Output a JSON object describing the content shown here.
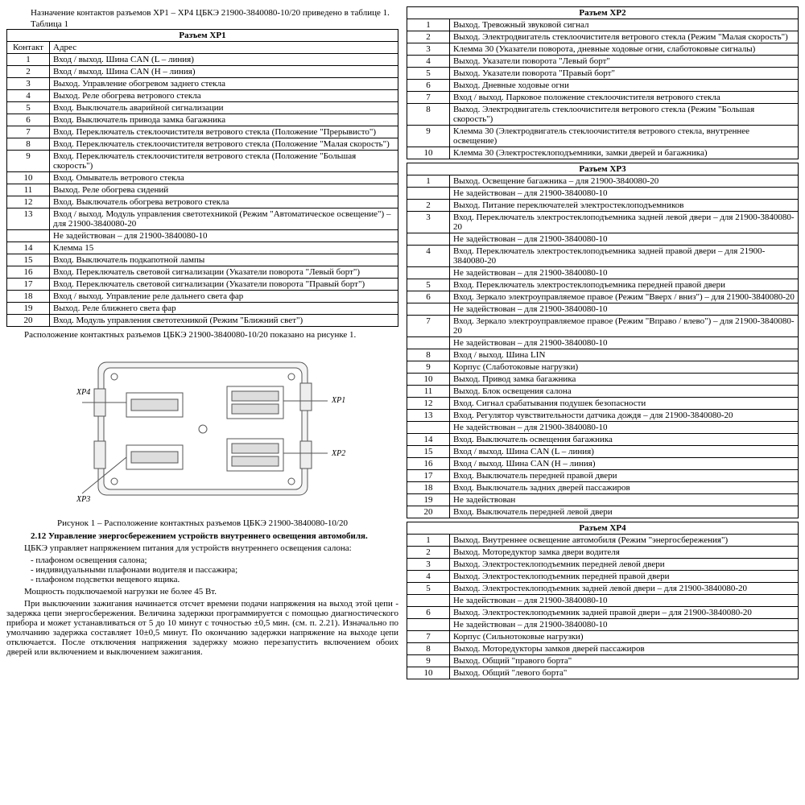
{
  "intro": "Назначение контактов разъемов XP1 – XP4 ЦБКЭ 21900-3840080-10/20 приведено в таблице 1.",
  "tlabel": "Таблица 1",
  "xp1": {
    "title": "Разъем XP1",
    "head": [
      "Контакт",
      "Адрес"
    ],
    "rows": [
      [
        "1",
        "Вход / выход. Шина CAN (L – линия)"
      ],
      [
        "2",
        "Вход / выход. Шина CAN (H – линия)"
      ],
      [
        "3",
        "Выход. Управление обогревом заднего стекла"
      ],
      [
        "4",
        "Выход. Реле обогрева ветрового стекла"
      ],
      [
        "5",
        "Вход. Выключатель аварийной сигнализации"
      ],
      [
        "6",
        "Вход. Выключатель привода замка багажника"
      ],
      [
        "7",
        "Вход. Переключатель стеклоочистителя ветрового стекла (Положение \"Прерывисто\")"
      ],
      [
        "8",
        "Вход. Переключатель стеклоочистителя ветрового стекла (Положение \"Малая скорость\")"
      ],
      [
        "9",
        "Вход. Переключатель стеклоочистителя ветрового стекла (Положение \"Большая скорость\")"
      ],
      [
        "10",
        "Вход. Омыватель ветрового стекла"
      ],
      [
        "11",
        "Выход. Реле обогрева сидений"
      ],
      [
        "12",
        "Вход. Выключатель обогрева ветрового стекла"
      ],
      [
        "13",
        "Вход / выход. Модуль управления светотехникой (Режим \"Автоматическое освещение\") – для 21900-3840080-20"
      ],
      [
        "",
        "Не задействован – для 21900-3840080-10"
      ],
      [
        "14",
        "Клемма 15"
      ],
      [
        "15",
        "Вход. Выключатель подкапотной лампы"
      ],
      [
        "16",
        "Вход. Переключатель световой сигнализации (Указатели поворота \"Левый борт\")"
      ],
      [
        "17",
        "Вход. Переключатель световой сигнализации (Указатели поворота \"Правый борт\")"
      ],
      [
        "18",
        "Вход / выход. Управление реле дальнего света фар"
      ],
      [
        "19",
        "Выход. Реле ближнего света фар"
      ],
      [
        "20",
        "Вход. Модуль управления светотехникой (Режим \"Ближний свет\")"
      ]
    ]
  },
  "para1": "Расположение контактных разъемов ЦБКЭ 21900-3840080-10/20 показано на рисунке 1.",
  "figcap": "Рисунок 1 – Расположение контактных разъемов ЦБКЭ 21900-3840080-10/20",
  "sect": "2.12 Управление энергосбережением устройств внутреннего освещения автомобиля.",
  "p2": "ЦБКЭ управляет напряжением питания для устройств внутреннего освещения салона:",
  "b1": "- плафоном освещения салона;",
  "b2": "- индивидуальными плафонами водителя и пассажира;",
  "b3": "- плафоном подсветки вещевого ящика.",
  "p3": "Мощность подключаемой нагрузки не более 45 Вт.",
  "p4": "При выключении зажигания начинается отсчет времени подачи напряжения на выход этой цепи - задержка цепи энергосбережения. Величина задержки программируется с помощью диагностического прибора и может устанавливаться от 5 до 10 минут с точностью ±0,5 мин. (см. п. 2.21). Изначально по умолчанию задержка составляет 10±0,5 минут. По окончанию задержки напряжение на выходе цепи отключается. После отключения напряжения задержку можно перезапустить включением обоих дверей или включением и выключением зажигания.",
  "xp2": {
    "title": "Разъем XP2",
    "rows": [
      [
        "1",
        "Выход. Тревожный звуковой сигнал"
      ],
      [
        "2",
        "Выход. Электродвигатель стеклоочистителя ветрового стекла (Режим \"Малая скорость\")"
      ],
      [
        "3",
        "Клемма 30 (Указатели поворота, дневные ходовые огни, слаботоковые сигналы)"
      ],
      [
        "4",
        "Выход. Указатели поворота \"Левый борт\""
      ],
      [
        "5",
        "Выход. Указатели поворота \"Правый борт\""
      ],
      [
        "6",
        "Выход. Дневные ходовые огни"
      ],
      [
        "7",
        "Вход / выход. Парковое положение стеклоочистителя ветрового стекла"
      ],
      [
        "8",
        "Выход. Электродвигатель стеклоочистителя ветрового стекла (Режим \"Большая скорость\")"
      ],
      [
        "9",
        "Клемма 30 (Электродвигатель стеклоочистителя ветрового стекла, внутреннее освещение)"
      ],
      [
        "10",
        "Клемма 30 (Электростеклоподъемники, замки дверей и багажника)"
      ]
    ]
  },
  "xp3": {
    "title": "Разъем XP3",
    "rows": [
      [
        "1",
        "Выход. Освещение багажника – для 21900-3840080-20"
      ],
      [
        "",
        "Не задействован – для 21900-3840080-10"
      ],
      [
        "2",
        "Выход. Питание переключателей электростеклоподъемников"
      ],
      [
        "3",
        "Вход. Переключатель электростеклоподъемника задней левой двери – для 21900-3840080-20"
      ],
      [
        "",
        "Не задействован – для 21900-3840080-10"
      ],
      [
        "4",
        "Вход. Переключатель электростеклоподъемника задней правой двери – для 21900-3840080-20"
      ],
      [
        "",
        "Не задействован – для 21900-3840080-10"
      ],
      [
        "5",
        "Вход. Переключатель электростеклоподъемника передней правой двери"
      ],
      [
        "6",
        "Вход. Зеркало электроуправляемое правое (Режим \"Вверх / вниз\") – для 21900-3840080-20"
      ],
      [
        "",
        "Не задействован – для 21900-3840080-10"
      ],
      [
        "7",
        "Вход. Зеркало электроуправляемое правое (Режим \"Вправо / влево\") – для 21900-3840080-20"
      ],
      [
        "",
        "Не задействован – для 21900-3840080-10"
      ],
      [
        "8",
        "Вход / выход. Шина LIN"
      ],
      [
        "9",
        "Корпус (Слаботоковые нагрузки)"
      ],
      [
        "10",
        "Выход. Привод замка багажника"
      ],
      [
        "11",
        "Выход. Блок освещения салона"
      ],
      [
        "12",
        "Вход. Сигнал срабатывания подушек безопасности"
      ],
      [
        "13",
        "Вход. Регулятор чувствительности датчика дождя – для 21900-3840080-20"
      ],
      [
        "",
        "Не задействован – для 21900-3840080-10"
      ],
      [
        "14",
        "Вход. Выключатель освещения багажника"
      ],
      [
        "15",
        "Вход / выход. Шина CAN (L – линия)"
      ],
      [
        "16",
        "Вход / выход. Шина CAN (H – линия)"
      ],
      [
        "17",
        "Вход. Выключатель передней правой двери"
      ],
      [
        "18",
        "Вход. Выключатель задних дверей пассажиров"
      ],
      [
        "19",
        "Не задействован"
      ],
      [
        "20",
        "Вход. Выключатель передней левой двери"
      ]
    ]
  },
  "xp4": {
    "title": "Разъем XP4",
    "rows": [
      [
        "1",
        "Выход. Внутреннее освещение автомобиля (Режим \"энергосбережения\")"
      ],
      [
        "2",
        "Выход. Моторедуктор замка двери водителя"
      ],
      [
        "3",
        "Выход. Электростеклоподъемник передней левой двери"
      ],
      [
        "4",
        "Выход. Электростеклоподъемник передней правой двери"
      ],
      [
        "5",
        "Выход. Электростеклоподъемник задней левой двери – для 21900-3840080-20"
      ],
      [
        "",
        "Не задействован – для 21900-3840080-10"
      ],
      [
        "6",
        "Выход. Электростеклоподъемник задней правой двери – для 21900-3840080-20"
      ],
      [
        "",
        "Не задействован – для 21900-3840080-10"
      ],
      [
        "7",
        "Корпус (Сильнотоковые нагрузки)"
      ],
      [
        "8",
        "Выход. Моторедукторы замков дверей пассажиров"
      ],
      [
        "9",
        "Выход. Общий \"правого борта\""
      ],
      [
        "10",
        "Выход. Общий \"левого борта\""
      ]
    ]
  },
  "fig": {
    "labels": [
      "XP4",
      "XP3",
      "XP1",
      "XP2"
    ]
  }
}
